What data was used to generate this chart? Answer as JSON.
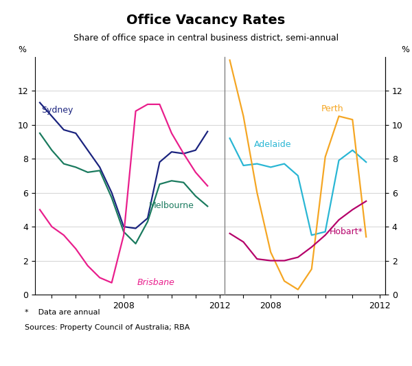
{
  "title": "Office Vacancy Rates",
  "subtitle": "Share of office space in central business district, semi-annual",
  "footnote_line1": "*    Data are annual",
  "footnote_line2": "Sources: Property Council of Australia; RBA",
  "ylabel": "%",
  "ylim": [
    0,
    14
  ],
  "yticks": [
    0,
    2,
    4,
    6,
    8,
    10,
    12
  ],
  "yticklabels": [
    "0",
    "2",
    "4",
    "6",
    "8",
    "10",
    "12"
  ],
  "left_panel": {
    "xlim_start": 2004.3,
    "xlim_end": 2012.2,
    "xticks": [
      2005,
      2006,
      2007,
      2008,
      2009,
      2010,
      2011,
      2012
    ],
    "xticklabels": [
      "",
      "",
      "",
      "2008",
      "",
      "",
      "",
      "2012"
    ],
    "series": {
      "Sydney": {
        "color": "#1a237e",
        "x": [
          2004.5,
          2005.0,
          2005.5,
          2006.0,
          2006.5,
          2007.0,
          2007.5,
          2008.0,
          2008.5,
          2009.0,
          2009.5,
          2010.0,
          2010.5,
          2011.0,
          2011.5
        ],
        "y": [
          11.3,
          10.5,
          9.7,
          9.5,
          8.5,
          7.5,
          6.0,
          4.0,
          3.9,
          4.5,
          7.8,
          8.4,
          8.3,
          8.5,
          9.6
        ]
      },
      "Melbourne": {
        "color": "#1a7a5e",
        "x": [
          2004.5,
          2005.0,
          2005.5,
          2006.0,
          2006.5,
          2007.0,
          2007.5,
          2008.0,
          2008.5,
          2009.0,
          2009.5,
          2010.0,
          2010.5,
          2011.0,
          2011.5
        ],
        "y": [
          9.5,
          8.5,
          7.7,
          7.5,
          7.2,
          7.3,
          5.7,
          3.7,
          3.0,
          4.3,
          6.5,
          6.7,
          6.6,
          5.8,
          5.2
        ]
      },
      "Brisbane": {
        "color": "#e91e8c",
        "x": [
          2004.5,
          2005.0,
          2005.5,
          2006.0,
          2006.5,
          2007.0,
          2007.5,
          2008.0,
          2008.5,
          2009.0,
          2009.5,
          2010.0,
          2010.5,
          2011.0,
          2011.5
        ],
        "y": [
          5.0,
          4.0,
          3.5,
          2.7,
          1.7,
          1.0,
          0.7,
          3.5,
          10.8,
          11.2,
          11.2,
          9.5,
          8.3,
          7.2,
          6.4
        ]
      }
    }
  },
  "right_panel": {
    "xlim_start": 2006.3,
    "xlim_end": 2012.2,
    "xticks": [
      2007,
      2008,
      2009,
      2010,
      2011,
      2012
    ],
    "xticklabels": [
      "",
      "2008",
      "",
      "",
      "",
      "2012"
    ],
    "series": {
      "Adelaide": {
        "color": "#29b6d4",
        "x": [
          2006.5,
          2007.0,
          2007.5,
          2008.0,
          2008.5,
          2009.0,
          2009.5,
          2010.0,
          2010.5,
          2011.0,
          2011.5
        ],
        "y": [
          9.2,
          7.6,
          7.7,
          7.5,
          7.7,
          7.0,
          3.5,
          3.7,
          7.9,
          8.5,
          7.8
        ]
      },
      "Perth": {
        "color": "#f5a623",
        "x": [
          2006.5,
          2007.0,
          2007.5,
          2008.0,
          2008.5,
          2009.0,
          2009.5,
          2010.0,
          2010.5,
          2011.0,
          2011.5
        ],
        "y": [
          13.8,
          10.5,
          6.0,
          2.5,
          0.8,
          0.3,
          1.5,
          8.1,
          10.5,
          10.3,
          3.4
        ]
      },
      "Hobart": {
        "color": "#b5006a",
        "x": [
          2006.5,
          2007.0,
          2007.5,
          2008.0,
          2008.5,
          2009.0,
          2009.5,
          2010.0,
          2010.5,
          2011.0,
          2011.5
        ],
        "y": [
          3.6,
          3.1,
          2.1,
          2.0,
          2.0,
          2.2,
          2.8,
          3.5,
          4.4,
          5.0,
          5.5
        ]
      }
    }
  }
}
